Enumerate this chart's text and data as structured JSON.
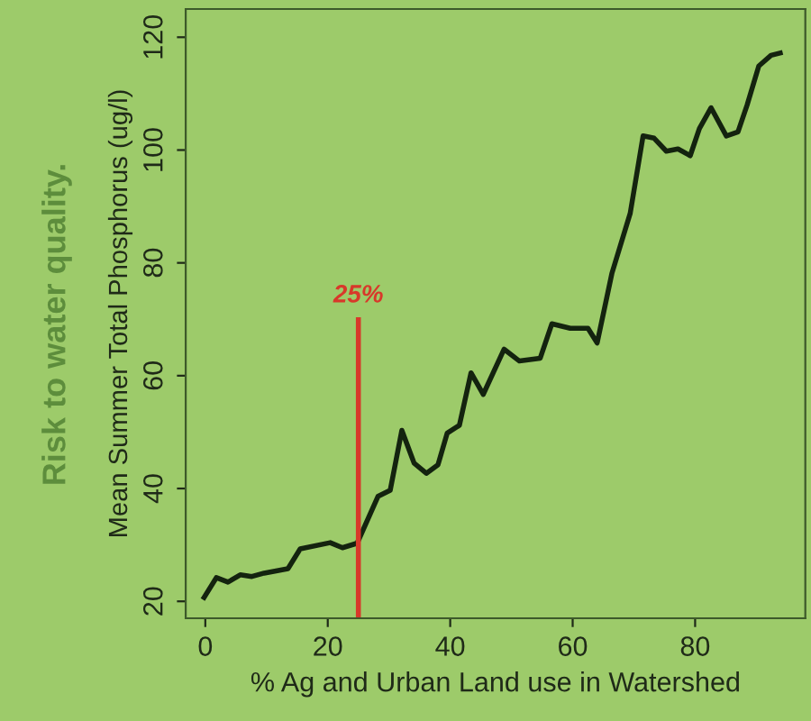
{
  "chart_data": {
    "type": "line",
    "xlabel": "% Ag and Urban Land use in Watershed",
    "ylabel": "Mean Summer Total Phosphorus (ug/l)",
    "annotations": [
      "Risk to water quality."
    ],
    "x": [
      -0.2,
      1.8,
      3.7,
      5.7,
      7.6,
      9.6,
      13.5,
      15.5,
      20.4,
      22.4,
      24.8,
      28.2,
      30.2,
      32.1,
      34.1,
      36.1,
      38,
      39.5,
      41.5,
      43.4,
      45.4,
      48.8,
      51.3,
      54.7,
      56.6,
      59.6,
      62.5,
      64,
      66.4,
      69.4,
      71.5,
      73.3,
      75.3,
      77.2,
      79.2,
      80.7,
      82.6,
      85.1,
      87,
      88.5,
      90.4,
      92.4,
      93.9
    ],
    "series": [
      {
        "color": "#14230f",
        "values": [
          20.7,
          24.2,
          23.4,
          24.7,
          24.4,
          25,
          25.8,
          29.3,
          30.4,
          29.5,
          30.3,
          38.6,
          39.7,
          50.3,
          44.5,
          42.7,
          44.2,
          49.8,
          51.2,
          60.5,
          56.7,
          64.7,
          62.6,
          63.1,
          69.2,
          68.4,
          68.4,
          65.8,
          78.1,
          88.8,
          102.5,
          102.1,
          99.8,
          100.2,
          99,
          103.8,
          107.5,
          102.5,
          103.2,
          108,
          114.9,
          116.8,
          117.2
        ]
      }
    ],
    "xlim": [
      -3.2,
      98
    ],
    "ylim": [
      17,
      125
    ],
    "xticks": [
      0,
      20,
      40,
      60,
      80
    ],
    "yticks": [
      20,
      40,
      60,
      80,
      100,
      120
    ],
    "ref_lines": [
      {
        "axis": "x",
        "value": 25,
        "label": "25%",
        "color": "#d8382a"
      }
    ],
    "grid": false,
    "legend": false,
    "marker": "none",
    "line_style": "solid"
  }
}
